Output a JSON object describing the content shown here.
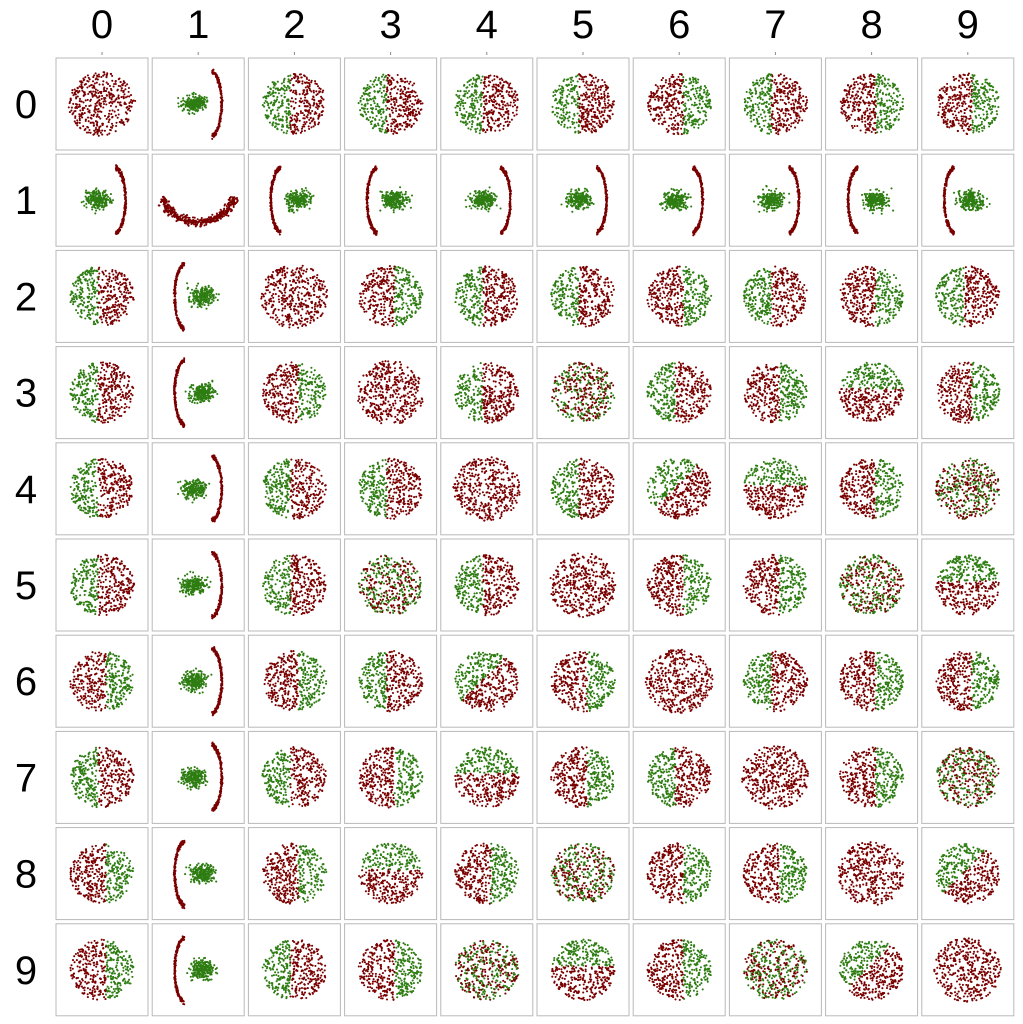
{
  "chart_data": {
    "type": "scatter",
    "layout": "pairwise-grid",
    "columns": [
      "0",
      "1",
      "2",
      "3",
      "4",
      "5",
      "6",
      "7",
      "8",
      "9"
    ],
    "rows": [
      "0",
      "1",
      "2",
      "3",
      "4",
      "5",
      "6",
      "7",
      "8",
      "9"
    ],
    "colors": {
      "first": "#7a0000",
      "second": "#2e7d12",
      "frame": "#b8b8b8"
    },
    "panels": [
      [
        "blob",
        "crescent-right",
        "split-left",
        "split-left",
        "split-left",
        "split-left",
        "split-right",
        "split-left",
        "split-right",
        "split-right"
      ],
      [
        "crescent-right",
        "ring",
        "crescent-left",
        "crescent-left",
        "crescent-right",
        "crescent-right",
        "crescent-right",
        "crescent-right",
        "crescent-left",
        "crescent-left"
      ],
      [
        "split-left",
        "crescent-left",
        "blob",
        "split-right",
        "split-left",
        "split-left",
        "split-right",
        "split-left",
        "split-right",
        "split-left"
      ],
      [
        "split-left",
        "crescent-left",
        "split-right",
        "blob",
        "split-left",
        "mixed",
        "split-left",
        "split-right",
        "split-top",
        "split-right"
      ],
      [
        "split-left",
        "crescent-right",
        "split-left",
        "split-left",
        "blob",
        "split-left",
        "split-diag",
        "split-top",
        "split-right",
        "mixed"
      ],
      [
        "split-left",
        "crescent-right",
        "split-left",
        "mixed",
        "split-left",
        "blob",
        "split-right",
        "split-right",
        "mixed",
        "split-top"
      ],
      [
        "split-right",
        "crescent-right",
        "split-right",
        "split-left",
        "split-diag",
        "split-right",
        "blob",
        "split-left",
        "split-right",
        "split-right"
      ],
      [
        "split-left",
        "crescent-right",
        "split-left",
        "split-right",
        "split-top",
        "split-right",
        "split-left",
        "blob",
        "split-right",
        "mixed"
      ],
      [
        "split-right",
        "crescent-left",
        "split-right",
        "split-top",
        "split-right",
        "mixed",
        "split-right",
        "split-right",
        "blob",
        "split-diag"
      ],
      [
        "split-right",
        "crescent-left",
        "split-left",
        "split-right",
        "mixed",
        "split-top",
        "split-right",
        "mixed",
        "split-diag",
        "blob"
      ]
    ]
  }
}
